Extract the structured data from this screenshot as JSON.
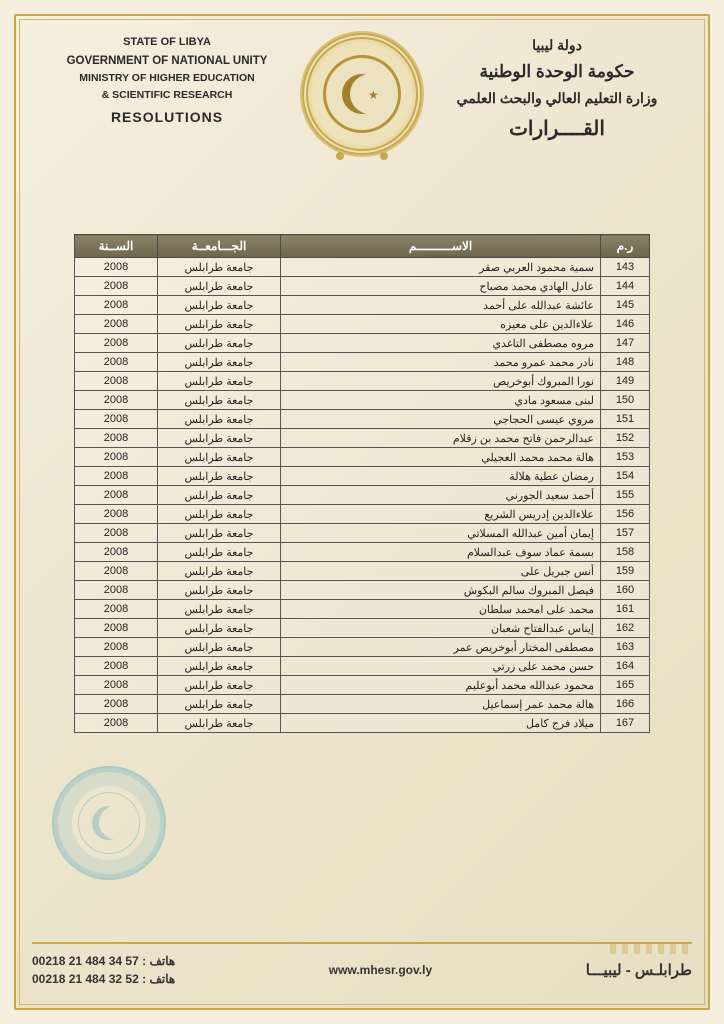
{
  "header": {
    "left": {
      "line1": "STATE OF LIBYA",
      "line2": "GOVERNMENT OF NATIONAL UNITY",
      "line3": "MINISTRY OF HIGHER EDUCATION",
      "line4": "& SCIENTIFIC RESEARCH",
      "line5": "RESOLUTIONS"
    },
    "right": {
      "ar1": "دولة ليبيا",
      "ar2": "حكومة الوحدة الوطنية",
      "ar3": "وزارة التعليم العالي والبحث العلمي",
      "ar4": "القــــرارات"
    }
  },
  "table": {
    "columns": {
      "num": "ر.م",
      "name": "الاســــــــــم",
      "university": "الجـــامعــة",
      "year": "الســنة"
    },
    "university_value": "جامعة طرابلس",
    "year_value": "2008",
    "rows": [
      {
        "n": 143,
        "name": "سمية محمود العربي صقر"
      },
      {
        "n": 144,
        "name": "عادل الهادي محمد مصباح"
      },
      {
        "n": 145,
        "name": "عائشة عبدالله على أحمد"
      },
      {
        "n": 146,
        "name": "علاءالدين على معيزه"
      },
      {
        "n": 147,
        "name": "مروه مصطفى التاغدي"
      },
      {
        "n": 148,
        "name": "نادر محمد عمرو محمد"
      },
      {
        "n": 149,
        "name": "نورا المبروك أبوخريص"
      },
      {
        "n": 150,
        "name": "لبنى مسعود مادي"
      },
      {
        "n": 151,
        "name": "مروي عيسى الحجاجي"
      },
      {
        "n": 152,
        "name": "عبدالرحمن فاتح محمد بن زقلام"
      },
      {
        "n": 153,
        "name": "هالة محمد محمد العجيلي"
      },
      {
        "n": 154,
        "name": "رمضان عطية هلالة"
      },
      {
        "n": 155,
        "name": "أحمد سعيد الجورني"
      },
      {
        "n": 156,
        "name": "علاءالدين إدريس الشريع"
      },
      {
        "n": 157,
        "name": "إيمان أمين عبدالله المسلاتي"
      },
      {
        "n": 158,
        "name": "بسمة عماد سوف عبدالسلام"
      },
      {
        "n": 159,
        "name": "أنس جبريل على"
      },
      {
        "n": 160,
        "name": "فيصل المبروك سالم البكوش"
      },
      {
        "n": 161,
        "name": "محمد على امحمد سلطان"
      },
      {
        "n": 162,
        "name": "إيناس عبدالفتاح شعبان"
      },
      {
        "n": 163,
        "name": "مصطفى المختار أبوخريص عمر"
      },
      {
        "n": 164,
        "name": "حسن محمد على زرتي"
      },
      {
        "n": 165,
        "name": "محمود عبدالله محمد أبوعليم"
      },
      {
        "n": 166,
        "name": "هالة محمد عمر إسماعيل"
      },
      {
        "n": 167,
        "name": "ميلاد فرج كامل"
      }
    ]
  },
  "footer": {
    "phone_label": "هاتف :",
    "phone1": "00218 21 484 34 57",
    "phone2": "00218 21 484 32 52",
    "url": "www.mhesr.gov.ly",
    "location": "طرابلـس - ليبيـــا"
  },
  "style": {
    "page_bg": "#ede4cc",
    "border_color": "#c9a84a",
    "th_bg": "#7b7258",
    "th_color": "#ffffff",
    "cell_border": "#555555",
    "text_color": "#222222",
    "stamp_color": "rgba(70,160,190,0.5)",
    "font_size_table": 11,
    "font_size_header_ar": 16
  }
}
